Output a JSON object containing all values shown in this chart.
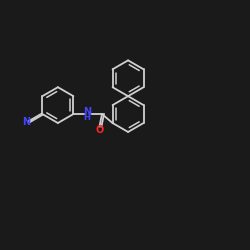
{
  "bg_color": "#1a1a1a",
  "bond_color": "#d0d0d0",
  "atom_colors": {
    "N": "#4444ff",
    "O": "#ff2222"
  },
  "lw": 1.3,
  "r": 0.72,
  "figsize": [
    2.5,
    2.5
  ],
  "dpi": 100
}
